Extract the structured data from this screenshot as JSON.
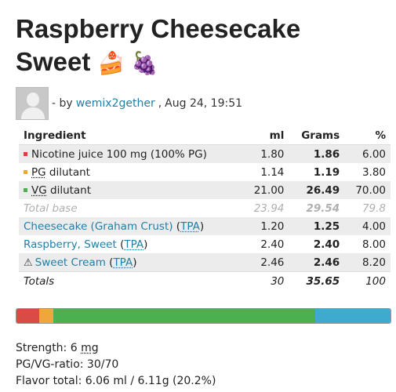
{
  "title": {
    "line1": "Raspberry Cheesecake",
    "line2": "Sweet",
    "emojis": "🍰 🍇"
  },
  "byline": {
    "prefix": "- by",
    "author": "wemix2gether",
    "separator": ",",
    "date": "Aug 24, 19:51"
  },
  "table": {
    "headers": {
      "ingredient": "Ingredient",
      "ml": "ml",
      "grams": "Grams",
      "percent": "%"
    },
    "rows": [
      {
        "name": "Nicotine juice 100 mg (100% PG)",
        "ml": "1.80",
        "grams": "1.86",
        "percent": "6.00",
        "swatch": "#d9413f"
      },
      {
        "name": "PG",
        "suffix": " dilutant",
        "ml": "1.14",
        "grams": "1.19",
        "percent": "3.80",
        "swatch": "#f0a63a"
      },
      {
        "name": "VG",
        "suffix": " dilutant",
        "ml": "21.00",
        "grams": "26.49",
        "percent": "70.00",
        "swatch": "#4caf50"
      }
    ],
    "base": {
      "label": "Total base",
      "ml": "23.94",
      "grams": "29.54",
      "percent": "79.8"
    },
    "flavors": [
      {
        "name": "Cheesecake (Graham Crust)",
        "vendor": "TPA",
        "ml": "1.20",
        "grams": "1.25",
        "percent": "4.00"
      },
      {
        "name": "Raspberry, Sweet",
        "vendor": "TPA",
        "ml": "2.40",
        "grams": "2.40",
        "percent": "8.00"
      },
      {
        "name": "Sweet Cream",
        "vendor": "TPA",
        "ml": "2.46",
        "grams": "2.46",
        "percent": "8.20",
        "warning": "⚠"
      }
    ],
    "totals": {
      "label": "Totals",
      "ml": "30",
      "grams": "35.65",
      "percent": "100"
    }
  },
  "bar": [
    {
      "name": "nicotine",
      "percent": 6.0,
      "color": "#db4b45"
    },
    {
      "name": "pg",
      "percent": 3.8,
      "color": "#f0a63a"
    },
    {
      "name": "vg",
      "percent": 70.0,
      "color": "#4caf50"
    },
    {
      "name": "flavor",
      "percent": 20.2,
      "color": "#3fa9cf"
    }
  ],
  "stats": {
    "strength_label": "Strength: 6 ",
    "strength_unit": "mg",
    "ratio": "PG/VG-ratio: 30/70",
    "flavor_total": "Flavor total: 6.06 ml / 6.11g (20.2%)"
  }
}
